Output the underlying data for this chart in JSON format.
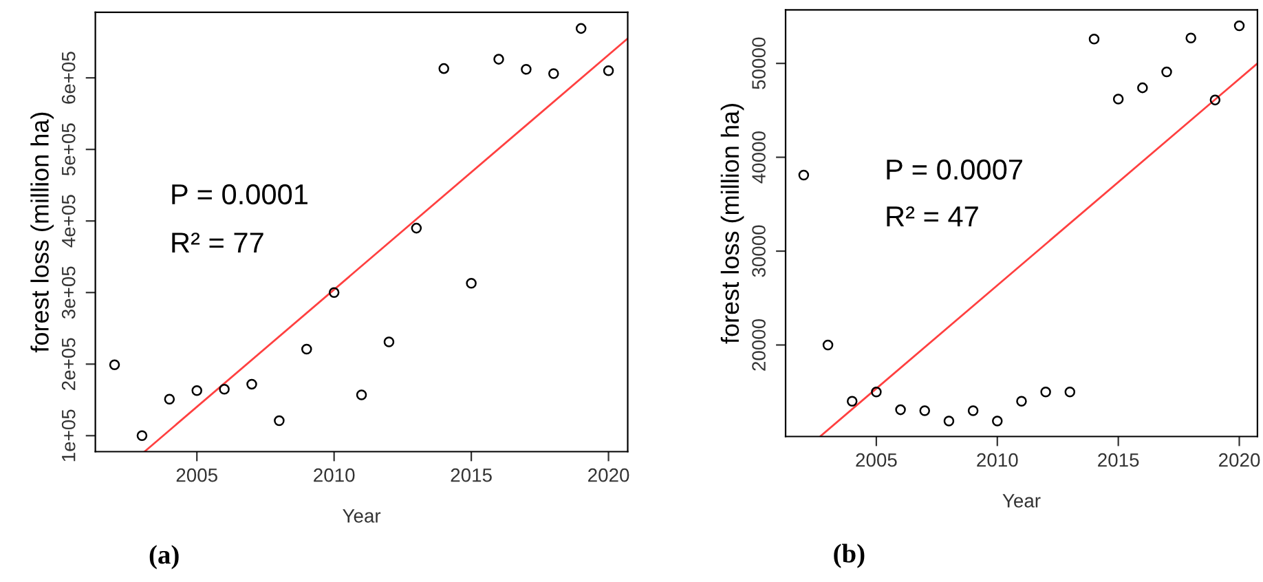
{
  "chart_data": [
    {
      "type": "scatter",
      "xlabel": "Year",
      "ylabel": "forest loss (million ha)",
      "annotations": [
        "P = 0.0001",
        "R² = 77",
        "(a)"
      ],
      "grid": false,
      "legend": false,
      "xlim": [
        2001.3,
        2020.7
      ],
      "xticks": [
        2005,
        2010,
        2015,
        2020
      ],
      "ylim": [
        77700,
        691700
      ],
      "yticks": [
        {
          "value": 100000,
          "label": "1e+05"
        },
        {
          "value": 200000,
          "label": "2e+05"
        },
        {
          "value": 300000,
          "label": "3e+05"
        },
        {
          "value": 400000,
          "label": "4e+05"
        },
        {
          "value": 500000,
          "label": "5e+05"
        },
        {
          "value": 600000,
          "label": "6e+05"
        }
      ],
      "series": [
        {
          "marker": "circle",
          "color": "#000000",
          "x": [
            2002,
            2003,
            2004,
            2005,
            2006,
            2007,
            2008,
            2009,
            2010,
            2011,
            2012,
            2013,
            2014,
            2015,
            2016,
            2017,
            2018,
            2019,
            2020
          ],
          "values": [
            199000,
            100000,
            151000,
            163000,
            165000,
            172000,
            121000,
            221000,
            300000,
            157000,
            231000,
            390000,
            613000,
            313000,
            626000,
            612000,
            606000,
            669000,
            610000
          ]
        },
        {
          "type": "line",
          "marker": "none",
          "color": "#ff4040",
          "x": [
            2003.1,
            2020.7
          ],
          "values": [
            78000,
            655000
          ]
        }
      ]
    },
    {
      "type": "scatter",
      "xlabel": "Year",
      "ylabel": "forest loss (million ha)",
      "annotations": [
        "P = 0.0007",
        "R² = 47",
        "(b)"
      ],
      "grid": false,
      "legend": false,
      "xlim": [
        2001.25,
        2020.75
      ],
      "xticks": [
        2005,
        2010,
        2015,
        2020
      ],
      "ylim": [
        10250,
        55700
      ],
      "yticks": [
        20000,
        30000,
        40000,
        50000
      ],
      "series": [
        {
          "marker": "circle",
          "color": "#000000",
          "x": [
            2002,
            2003,
            2004,
            2005,
            2006,
            2007,
            2008,
            2009,
            2010,
            2011,
            2012,
            2013,
            2014,
            2015,
            2016,
            2017,
            2018,
            2019,
            2020
          ],
          "values": [
            38100,
            20000,
            14000,
            15000,
            13100,
            13000,
            11900,
            13000,
            11900,
            14000,
            15000,
            15000,
            52600,
            46200,
            47400,
            49100,
            52700,
            46100,
            54000
          ]
        },
        {
          "type": "line",
          "marker": "none",
          "color": "#ff4040",
          "x": [
            2002.7,
            2020.75
          ],
          "values": [
            10300,
            50000
          ]
        }
      ]
    }
  ]
}
